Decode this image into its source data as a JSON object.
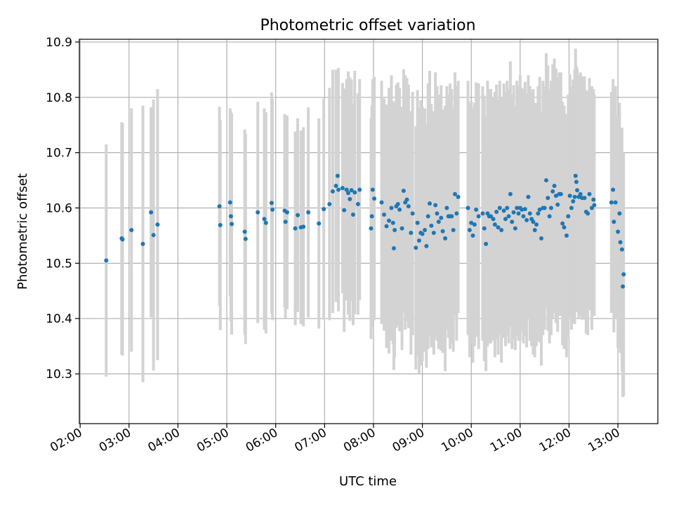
{
  "chart_data": {
    "type": "scatter",
    "title": "Photometric offset variation",
    "xlabel": "UTC time",
    "ylabel": "Photometric offset",
    "xlim": [
      "01:59",
      "13:49"
    ],
    "ylim": [
      10.21,
      10.905
    ],
    "xticks": [
      "02:00",
      "03:00",
      "04:00",
      "05:00",
      "06:00",
      "07:00",
      "08:00",
      "09:00",
      "10:00",
      "11:00",
      "12:00",
      "13:00"
    ],
    "yticks": [
      "10.3",
      "10.4",
      "10.5",
      "10.6",
      "10.7",
      "10.8",
      "10.9"
    ],
    "grid": true,
    "colors": {
      "point": "#1f77b4",
      "errorbar": "#d3d3d3",
      "grid": "#b0b0b0",
      "axes": "#000000"
    },
    "x_unit": "minutes",
    "points": [
      [
        "02:32",
        10.505,
        0.21
      ],
      [
        "02:51",
        10.545,
        0.21
      ],
      [
        "02:52",
        10.543,
        0.21
      ],
      [
        "03:03",
        10.56,
        0.22
      ],
      [
        "03:17",
        10.535,
        0.25
      ],
      [
        "03:27",
        10.592,
        0.19
      ],
      [
        "03:30",
        10.551,
        0.245
      ],
      [
        "03:35",
        10.57,
        0.245
      ],
      [
        "04:51",
        10.603,
        0.18
      ],
      [
        "04:52",
        10.569,
        0.19
      ],
      [
        "05:04",
        10.61,
        0.17
      ],
      [
        "05:05",
        10.585,
        0.19
      ],
      [
        "05:06",
        10.571,
        0.2
      ],
      [
        "05:22",
        10.557,
        0.185
      ],
      [
        "05:23",
        10.544,
        0.19
      ],
      [
        "05:38",
        10.592,
        0.2
      ],
      [
        "05:46",
        10.58,
        0.2
      ],
      [
        "05:48",
        10.573,
        0.2
      ],
      [
        "05:55",
        10.609,
        0.2
      ],
      [
        "05:56",
        10.597,
        0.2
      ],
      [
        "06:11",
        10.595,
        0.175
      ],
      [
        "06:12",
        10.575,
        0.175
      ],
      [
        "06:14",
        10.592,
        0.175
      ],
      [
        "06:24",
        10.563,
        0.175
      ],
      [
        "06:27",
        10.587,
        0.175
      ],
      [
        "06:31",
        10.565,
        0.175
      ],
      [
        "06:34",
        10.566,
        0.18
      ],
      [
        "06:40",
        10.592,
        0.19
      ],
      [
        "06:53",
        10.572,
        0.19
      ],
      [
        "06:59",
        10.598,
        0.2
      ],
      [
        "07:06",
        10.607,
        0.21
      ],
      [
        "07:10",
        10.63,
        0.22
      ],
      [
        "07:14",
        10.64,
        0.21
      ],
      [
        "07:16",
        10.658,
        0.19
      ],
      [
        "07:17",
        10.633,
        0.22
      ],
      [
        "07:22",
        10.636,
        0.19
      ],
      [
        "07:24",
        10.596,
        0.22
      ],
      [
        "07:27",
        10.633,
        0.2
      ],
      [
        "07:29",
        10.627,
        0.22
      ],
      [
        "07:31",
        10.616,
        0.22
      ],
      [
        "07:33",
        10.632,
        0.2
      ],
      [
        "07:35",
        10.588,
        0.2
      ],
      [
        "07:37",
        10.628,
        0.22
      ],
      [
        "07:41",
        10.607,
        0.2
      ],
      [
        "07:43",
        10.633,
        0.2
      ],
      [
        "07:57",
        10.563,
        0.2
      ],
      [
        "07:58",
        10.585,
        0.2
      ],
      [
        "07:59",
        10.633,
        0.2
      ],
      [
        "08:01",
        10.617,
        0.22
      ],
      [
        "08:10",
        10.61,
        0.22
      ],
      [
        "08:13",
        10.588,
        0.21
      ],
      [
        "08:16",
        10.567,
        0.22
      ],
      [
        "08:19",
        10.577,
        0.24
      ],
      [
        "08:22",
        10.6,
        0.24
      ],
      [
        "08:24",
        10.573,
        0.22
      ],
      [
        "08:25",
        10.527,
        0.22
      ],
      [
        "08:26",
        10.56,
        0.23
      ],
      [
        "08:28",
        10.603,
        0.22
      ],
      [
        "08:30",
        10.607,
        0.22
      ],
      [
        "08:32",
        10.597,
        0.22
      ],
      [
        "08:35",
        10.563,
        0.22
      ],
      [
        "08:37",
        10.631,
        0.22
      ],
      [
        "08:39",
        10.61,
        0.23
      ],
      [
        "08:41",
        10.615,
        0.22
      ],
      [
        "08:43",
        10.603,
        0.22
      ],
      [
        "08:46",
        10.555,
        0.22
      ],
      [
        "08:48",
        10.59,
        0.22
      ],
      [
        "08:52",
        10.528,
        0.22
      ],
      [
        "08:54",
        10.573,
        0.24
      ],
      [
        "08:56",
        10.541,
        0.24
      ],
      [
        "08:58",
        10.555,
        0.24
      ],
      [
        "09:00",
        10.553,
        0.23
      ],
      [
        "09:03",
        10.56,
        0.22
      ],
      [
        "09:05",
        10.531,
        0.22
      ],
      [
        "09:07",
        10.585,
        0.24
      ],
      [
        "09:09",
        10.608,
        0.24
      ],
      [
        "09:11",
        10.568,
        0.22
      ],
      [
        "09:14",
        10.555,
        0.22
      ],
      [
        "09:16",
        10.605,
        0.24
      ],
      [
        "09:18",
        10.59,
        0.23
      ],
      [
        "09:20",
        10.575,
        0.23
      ],
      [
        "09:23",
        10.582,
        0.24
      ],
      [
        "09:25",
        10.558,
        0.22
      ],
      [
        "09:28",
        10.545,
        0.24
      ],
      [
        "09:30",
        10.6,
        0.22
      ],
      [
        "09:32",
        10.585,
        0.22
      ],
      [
        "09:34",
        10.585,
        0.24
      ],
      [
        "09:36",
        10.585,
        0.23
      ],
      [
        "09:38",
        10.56,
        0.22
      ],
      [
        "09:40",
        10.625,
        0.22
      ],
      [
        "09:42",
        10.59,
        0.23
      ],
      [
        "09:44",
        10.62,
        0.21
      ],
      [
        "09:56",
        10.6,
        0.23
      ],
      [
        "09:58",
        10.56,
        0.23
      ],
      [
        "10:00",
        10.573,
        0.22
      ],
      [
        "10:02",
        10.55,
        0.23
      ],
      [
        "10:04",
        10.57,
        0.22
      ],
      [
        "10:06",
        10.597,
        0.23
      ],
      [
        "10:09",
        10.585,
        0.24
      ],
      [
        "10:14",
        10.59,
        0.23
      ],
      [
        "10:16",
        10.563,
        0.24
      ],
      [
        "10:18",
        10.535,
        0.23
      ],
      [
        "10:20",
        10.59,
        0.24
      ],
      [
        "10:22",
        10.585,
        0.23
      ],
      [
        "10:24",
        10.585,
        0.23
      ],
      [
        "10:27",
        10.58,
        0.22
      ],
      [
        "10:29",
        10.57,
        0.24
      ],
      [
        "10:31",
        10.593,
        0.23
      ],
      [
        "10:33",
        10.565,
        0.23
      ],
      [
        "10:35",
        10.6,
        0.23
      ],
      [
        "10:37",
        10.56,
        0.24
      ],
      [
        "10:40",
        10.595,
        0.23
      ],
      [
        "10:42",
        10.58,
        0.23
      ],
      [
        "10:44",
        10.6,
        0.23
      ],
      [
        "10:46",
        10.585,
        0.23
      ],
      [
        "10:48",
        10.625,
        0.24
      ],
      [
        "10:50",
        10.575,
        0.23
      ],
      [
        "10:52",
        10.592,
        0.23
      ],
      [
        "10:54",
        10.563,
        0.22
      ],
      [
        "10:56",
        10.6,
        0.23
      ],
      [
        "10:58",
        10.59,
        0.23
      ],
      [
        "11:00",
        10.6,
        0.24
      ],
      [
        "11:02",
        10.597,
        0.22
      ],
      [
        "11:04",
        10.585,
        0.23
      ],
      [
        "11:06",
        10.598,
        0.23
      ],
      [
        "11:08",
        10.578,
        0.23
      ],
      [
        "11:10",
        10.62,
        0.22
      ],
      [
        "11:12",
        10.59,
        0.23
      ],
      [
        "11:14",
        10.58,
        0.23
      ],
      [
        "11:16",
        10.575,
        0.24
      ],
      [
        "11:18",
        10.56,
        0.23
      ],
      [
        "11:20",
        10.57,
        0.22
      ],
      [
        "11:22",
        10.59,
        0.23
      ],
      [
        "11:24",
        10.597,
        0.24
      ],
      [
        "11:26",
        10.545,
        0.23
      ],
      [
        "11:28",
        10.6,
        0.23
      ],
      [
        "11:30",
        10.6,
        0.22
      ],
      [
        "11:32",
        10.65,
        0.23
      ],
      [
        "11:34",
        10.618,
        0.24
      ],
      [
        "11:36",
        10.585,
        0.23
      ],
      [
        "11:38",
        10.6,
        0.23
      ],
      [
        "11:40",
        10.63,
        0.23
      ],
      [
        "11:42",
        10.64,
        0.23
      ],
      [
        "11:44",
        10.622,
        0.23
      ],
      [
        "11:46",
        10.606,
        0.23
      ],
      [
        "11:48",
        10.625,
        0.22
      ],
      [
        "11:50",
        10.625,
        0.22
      ],
      [
        "11:52",
        10.572,
        0.22
      ],
      [
        "11:54",
        10.565,
        0.22
      ],
      [
        "11:57",
        10.55,
        0.22
      ],
      [
        "11:59",
        10.585,
        0.22
      ],
      [
        "12:01",
        10.622,
        0.22
      ],
      [
        "12:03",
        10.6,
        0.22
      ],
      [
        "12:05",
        10.612,
        0.22
      ],
      [
        "12:07",
        10.62,
        0.23
      ],
      [
        "12:08",
        10.658,
        0.23
      ],
      [
        "12:09",
        10.647,
        0.21
      ],
      [
        "12:10",
        10.632,
        0.22
      ],
      [
        "12:12",
        10.62,
        0.22
      ],
      [
        "12:14",
        10.625,
        0.22
      ],
      [
        "12:16",
        10.618,
        0.22
      ],
      [
        "12:19",
        10.618,
        0.22
      ],
      [
        "12:21",
        10.593,
        0.22
      ],
      [
        "12:23",
        10.59,
        0.22
      ],
      [
        "12:25",
        10.625,
        0.21
      ],
      [
        "12:28",
        10.6,
        0.22
      ],
      [
        "12:30",
        10.615,
        0.2
      ],
      [
        "12:31",
        10.605,
        0.2
      ],
      [
        "12:52",
        10.61,
        0.2
      ],
      [
        "12:54",
        10.633,
        0.2
      ],
      [
        "12:55",
        10.575,
        0.2
      ],
      [
        "12:57",
        10.61,
        0.21
      ],
      [
        "13:00",
        10.557,
        0.21
      ],
      [
        "13:02",
        10.59,
        0.2
      ],
      [
        "13:03",
        10.538,
        0.2
      ],
      [
        "13:05",
        10.525,
        0.22
      ],
      [
        "13:06",
        10.458,
        0.2
      ],
      [
        "13:07",
        10.48,
        0.22
      ]
    ]
  }
}
